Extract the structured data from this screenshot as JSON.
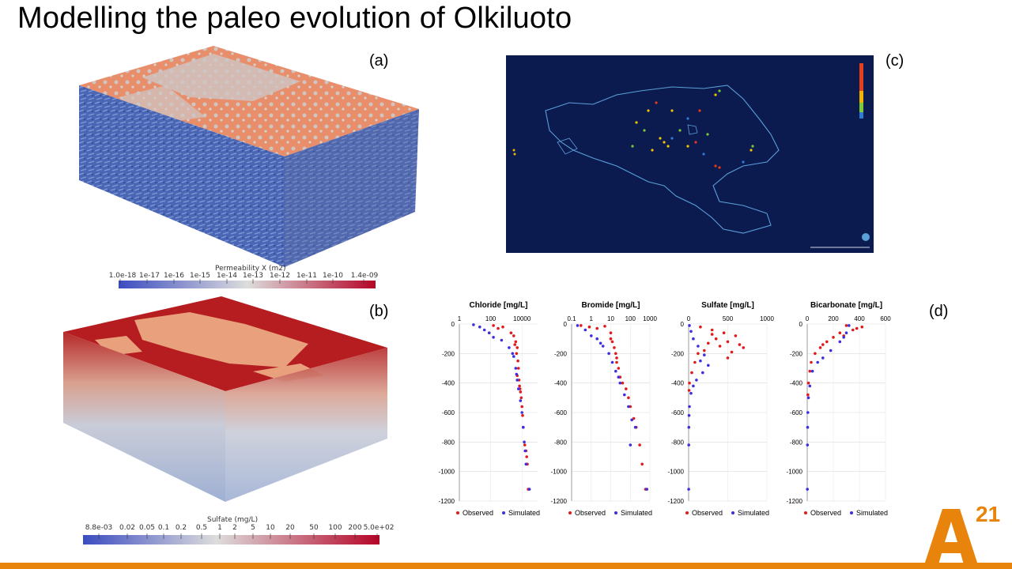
{
  "title": "Modelling the paleo evolution of Olkiluoto",
  "panels": {
    "a": "(a)",
    "b": "(b)",
    "c": "(c)",
    "d": "(d)"
  },
  "colorbar_a": {
    "title": "Permeability X (m2)",
    "ticks": [
      "1.0e-18",
      "1e-17",
      "1e-16",
      "1e-15",
      "1e-14",
      "1e-13",
      "1e-12",
      "1e-11",
      "1e-10",
      "1.4e-09"
    ],
    "colors": [
      "#3b4cc0",
      "#dddddd",
      "#b40426"
    ]
  },
  "colorbar_b": {
    "title": "Sulfate (mg/L)",
    "ticks": [
      "8.8e-03",
      "0.02",
      "0.05",
      "0.1",
      "0.2",
      "0.5",
      "1",
      "2",
      "5",
      "10",
      "20",
      "50",
      "100",
      "200",
      "5.0e+02"
    ],
    "colors": [
      "#3b4cc0",
      "#dddddd",
      "#b40426"
    ]
  },
  "colors": {
    "observed": "#e31a1c",
    "simulated": "#3d2ee0",
    "accent": "#e8840c",
    "map_bg": "#0b1a4f"
  },
  "legend": {
    "observed": "Observed",
    "simulated": "Simulated"
  },
  "chart_data": [
    {
      "type": "scatter",
      "title": "Chloride [mg/L]",
      "x_scale": "log",
      "xlim": [
        1,
        100000
      ],
      "ylim": [
        -1200,
        0
      ],
      "x_ticks": [
        "1",
        "100",
        "10000"
      ],
      "y_ticks": [
        "0",
        "-200",
        "-400",
        "-600",
        "-800",
        "-1000",
        "-1200"
      ],
      "series": [
        {
          "name": "Observed",
          "points": [
            [
              150,
              -10
            ],
            [
              300,
              -30
            ],
            [
              600,
              -20
            ],
            [
              2000,
              -60
            ],
            [
              3000,
              -80
            ],
            [
              4000,
              -120
            ],
            [
              5000,
              -160
            ],
            [
              4500,
              -200
            ],
            [
              5500,
              -250
            ],
            [
              6000,
              -300
            ],
            [
              5000,
              -350
            ],
            [
              6500,
              -380
            ],
            [
              7000,
              -420
            ],
            [
              8000,
              -460
            ],
            [
              9000,
              -500
            ],
            [
              10000,
              -560
            ],
            [
              11000,
              -620
            ],
            [
              12000,
              -700
            ],
            [
              15000,
              -820
            ],
            [
              18000,
              -860
            ],
            [
              20000,
              -900
            ],
            [
              22000,
              -950
            ],
            [
              25000,
              -1120
            ],
            [
              3500,
              -140
            ],
            [
              7500,
              -440
            ]
          ]
        },
        {
          "name": "Simulated",
          "points": [
            [
              8,
              -5
            ],
            [
              20,
              -20
            ],
            [
              40,
              -40
            ],
            [
              80,
              -60
            ],
            [
              150,
              -90
            ],
            [
              500,
              -110
            ],
            [
              1500,
              -160
            ],
            [
              3000,
              -220
            ],
            [
              4000,
              -300
            ],
            [
              5000,
              -380
            ],
            [
              6000,
              -440
            ],
            [
              8000,
              -520
            ],
            [
              10000,
              -600
            ],
            [
              12000,
              -700
            ],
            [
              14000,
              -800
            ],
            [
              16000,
              -860
            ],
            [
              18000,
              -950
            ],
            [
              30000,
              -1120
            ],
            [
              2500,
              -200
            ],
            [
              4500,
              -340
            ]
          ]
        }
      ]
    },
    {
      "type": "scatter",
      "title": "Bromide [mg/L]",
      "x_scale": "log",
      "xlim": [
        0.1,
        1000
      ],
      "ylim": [
        -1200,
        0
      ],
      "x_ticks": [
        "0.1",
        "1",
        "10",
        "100",
        "1000"
      ],
      "y_ticks": [
        "0",
        "-200",
        "-400",
        "-600",
        "-800",
        "-1000",
        "-1200"
      ],
      "series": [
        {
          "name": "Observed",
          "points": [
            [
              0.3,
              -10
            ],
            [
              0.8,
              -20
            ],
            [
              2,
              -30
            ],
            [
              5,
              -15
            ],
            [
              10,
              -60
            ],
            [
              12,
              -120
            ],
            [
              15,
              -160
            ],
            [
              18,
              -200
            ],
            [
              20,
              -260
            ],
            [
              25,
              -300
            ],
            [
              30,
              -360
            ],
            [
              40,
              -400
            ],
            [
              60,
              -440
            ],
            [
              80,
              -500
            ],
            [
              100,
              -560
            ],
            [
              150,
              -640
            ],
            [
              200,
              -700
            ],
            [
              300,
              -820
            ],
            [
              400,
              -950
            ],
            [
              600,
              -1120
            ],
            [
              10,
              -100
            ],
            [
              20,
              -230
            ]
          ]
        },
        {
          "name": "Simulated",
          "points": [
            [
              0.2,
              -10
            ],
            [
              0.5,
              -40
            ],
            [
              1,
              -80
            ],
            [
              2,
              -100
            ],
            [
              4,
              -150
            ],
            [
              8,
              -200
            ],
            [
              12,
              -260
            ],
            [
              18,
              -320
            ],
            [
              30,
              -400
            ],
            [
              50,
              -480
            ],
            [
              80,
              -560
            ],
            [
              120,
              -650
            ],
            [
              180,
              -700
            ],
            [
              100,
              -820
            ],
            [
              700,
              -1120
            ],
            [
              3,
              -130
            ],
            [
              25,
              -360
            ]
          ]
        }
      ]
    },
    {
      "type": "scatter",
      "title": "Sulfate [mg/L]",
      "x_scale": "linear",
      "xlim": [
        0,
        1000
      ],
      "ylim": [
        -1200,
        0
      ],
      "x_ticks": [
        "0",
        "500",
        "1000"
      ],
      "y_ticks": [
        "0",
        "-200",
        "-400",
        "-600",
        "-800",
        "-1000",
        "-1200"
      ],
      "series": [
        {
          "name": "Observed",
          "points": [
            [
              150,
              -20
            ],
            [
              300,
              -40
            ],
            [
              450,
              -60
            ],
            [
              600,
              -80
            ],
            [
              500,
              -120
            ],
            [
              700,
              -160
            ],
            [
              550,
              -190
            ],
            [
              400,
              -150
            ],
            [
              350,
              -100
            ],
            [
              250,
              -130
            ],
            [
              120,
              -200
            ],
            [
              80,
              -260
            ],
            [
              40,
              -330
            ],
            [
              10,
              -400
            ],
            [
              5,
              -450
            ],
            [
              300,
              -70
            ],
            [
              650,
              -140
            ],
            [
              200,
              -180
            ],
            [
              500,
              -230
            ]
          ]
        },
        {
          "name": "Simulated",
          "points": [
            [
              10,
              -10
            ],
            [
              30,
              -50
            ],
            [
              60,
              -100
            ],
            [
              120,
              -150
            ],
            [
              200,
              -210
            ],
            [
              250,
              -280
            ],
            [
              180,
              -330
            ],
            [
              100,
              -380
            ],
            [
              60,
              -420
            ],
            [
              30,
              -470
            ],
            [
              10,
              -560
            ],
            [
              5,
              -620
            ],
            [
              3,
              -700
            ],
            [
              2,
              -820
            ],
            [
              1,
              -1120
            ],
            [
              150,
              -250
            ]
          ]
        }
      ]
    },
    {
      "type": "scatter",
      "title": "Bicarbonate [mg/L]",
      "x_scale": "linear",
      "xlim": [
        0,
        600
      ],
      "ylim": [
        -1200,
        0
      ],
      "x_ticks": [
        "0",
        "200",
        "400",
        "600"
      ],
      "y_ticks": [
        "0",
        "-200",
        "-400",
        "-600",
        "-800",
        "-1000",
        "-1200"
      ],
      "series": [
        {
          "name": "Observed",
          "points": [
            [
              300,
              -10
            ],
            [
              420,
              -20
            ],
            [
              350,
              -40
            ],
            [
              250,
              -60
            ],
            [
              200,
              -90
            ],
            [
              150,
              -120
            ],
            [
              100,
              -160
            ],
            [
              60,
              -200
            ],
            [
              30,
              -260
            ],
            [
              20,
              -320
            ],
            [
              10,
              -400
            ],
            [
              5,
              -480
            ],
            [
              380,
              -30
            ],
            [
              280,
              -80
            ],
            [
              120,
              -140
            ]
          ]
        },
        {
          "name": "Simulated",
          "points": [
            [
              320,
              -10
            ],
            [
              300,
              -60
            ],
            [
              250,
              -120
            ],
            [
              180,
              -180
            ],
            [
              120,
              -230
            ],
            [
              80,
              -260
            ],
            [
              40,
              -320
            ],
            [
              20,
              -420
            ],
            [
              10,
              -500
            ],
            [
              5,
              -600
            ],
            [
              3,
              -700
            ],
            [
              2,
              -820
            ],
            [
              1,
              -1120
            ],
            [
              280,
              -90
            ]
          ]
        }
      ]
    }
  ]
}
